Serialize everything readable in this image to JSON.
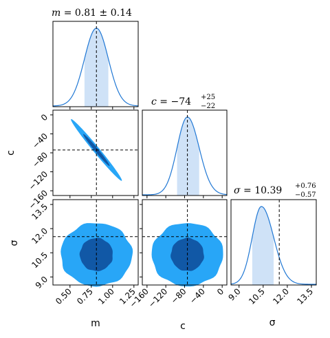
{
  "chart_data": {
    "type": "corner",
    "parameters": [
      {
        "name": "m",
        "label": "m",
        "title_var": "m",
        "title_value": "0.81",
        "title_err": "0.14",
        "median": 0.81,
        "lower": 0.67,
        "upper": 0.95,
        "truth": 0.81,
        "range": [
          0.3,
          1.3
        ],
        "ticks": [
          0.5,
          0.75,
          1.0,
          1.25
        ],
        "tick_labels": [
          "0.50",
          "0.75",
          "1.00",
          "1.25"
        ]
      },
      {
        "name": "c",
        "label": "c",
        "title_var": "c",
        "title_value": " = −74",
        "title_plus": "+25",
        "title_minus": "−22",
        "median": -74,
        "lower": -96,
        "upper": -49,
        "truth": -74,
        "range": [
          -170,
          10
        ],
        "ticks": [
          -160,
          -120,
          -80,
          -40,
          0
        ],
        "tick_labels": [
          "−160",
          "−120",
          "−80",
          "−40",
          "0"
        ]
      },
      {
        "name": "sigma",
        "label": "σ",
        "title_var": "σ",
        "title_value": " = 10.39",
        "title_plus": "+0.76",
        "title_minus": "−0.57",
        "median": 10.39,
        "lower": 9.82,
        "upper": 11.15,
        "truth": 11.5,
        "range": [
          8.5,
          13.8
        ],
        "ticks": [
          9.0,
          10.5,
          12.0,
          13.5
        ],
        "tick_labels": [
          "9.0",
          "10.5",
          "12.0",
          "13.5"
        ]
      }
    ],
    "color_outer": "#28a6f7",
    "color_inner": "#1158a6",
    "color_line": "#1f77d4",
    "color_band": "#cfe2f7",
    "truth_line": "dashed black"
  }
}
